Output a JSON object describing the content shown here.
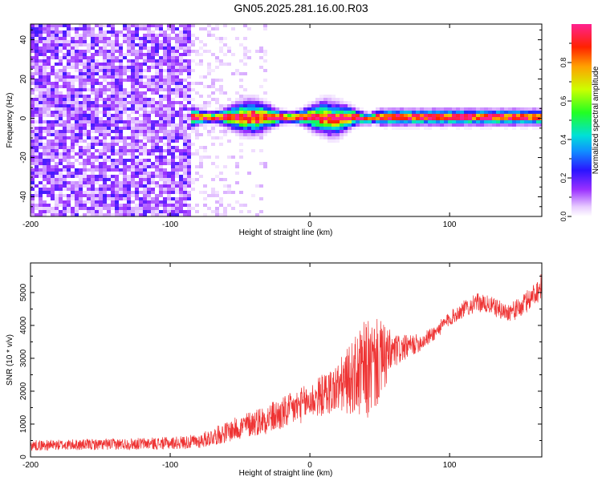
{
  "title": "GN05.2025.281.16.00.R03",
  "colors": {
    "snr_line": "#ee3333",
    "frame": "#000000",
    "background": "#ffffff"
  },
  "chart_data": [
    {
      "type": "heatmap",
      "name": "spectrogram",
      "xlabel": "Height of straight line (km)",
      "ylabel": "Frequency (Hz)",
      "xlim": [
        -200,
        166
      ],
      "ylim": [
        -50,
        48
      ],
      "xticks": [
        -200,
        -100,
        0,
        100
      ],
      "xtick_labels": [
        "-200",
        "-100",
        "0",
        "100"
      ],
      "yticks": [
        -40,
        -20,
        0,
        20,
        40
      ],
      "ytick_labels": [
        "-40",
        "-20",
        "0",
        "20",
        "40"
      ],
      "colorbar": {
        "label": "Normalized spectral amplitude",
        "range": [
          0,
          1
        ],
        "ticks": [
          0.0,
          0.2,
          0.4,
          0.6,
          0.8
        ],
        "tick_labels": [
          "0.0",
          "0.2",
          "0.4",
          "0.6",
          "0.8"
        ]
      },
      "regions": [
        {
          "x_range": [
            -200,
            -85
          ],
          "description": "broadband noise",
          "amplitude": 0.15
        },
        {
          "x_range": [
            -85,
            -30
          ],
          "description": "sparse noise",
          "amplitude": 0.05
        },
        {
          "x_range": [
            -85,
            166
          ],
          "description": "signal band near 0 Hz",
          "freq_center": 0,
          "amplitude_peak": 1.0
        }
      ]
    },
    {
      "type": "line",
      "name": "snr",
      "xlabel": "Height of straight line (km)",
      "ylabel": "SNR (10 * v/v)",
      "xlim": [
        -200,
        166
      ],
      "ylim": [
        0,
        5900
      ],
      "xticks": [
        -200,
        -100,
        0,
        100
      ],
      "xtick_labels": [
        "-200",
        "-100",
        "0",
        "100"
      ],
      "yticks": [
        0,
        1000,
        2000,
        3000,
        4000,
        5000
      ],
      "ytick_labels": [
        "0",
        "1000",
        "2000",
        "3000",
        "4000",
        "5000"
      ],
      "series": [
        {
          "name": "SNR",
          "x": [
            -200,
            -150,
            -100,
            -80,
            -60,
            -40,
            -20,
            0,
            10,
            20,
            30,
            40,
            50,
            60,
            70,
            80,
            90,
            100,
            110,
            120,
            130,
            140,
            150,
            166
          ],
          "y": [
            350,
            380,
            420,
            470,
            750,
            1050,
            1300,
            1700,
            1900,
            2100,
            2400,
            2600,
            2900,
            3200,
            3350,
            3500,
            3800,
            4200,
            4500,
            4700,
            4600,
            4400,
            4500,
            5200
          ],
          "spread": [
            160,
            170,
            190,
            220,
            320,
            420,
            520,
            560,
            650,
            800,
            1100,
            1600,
            1300,
            550,
            350,
            260,
            230,
            230,
            260,
            280,
            280,
            280,
            320,
            400
          ]
        }
      ]
    }
  ]
}
